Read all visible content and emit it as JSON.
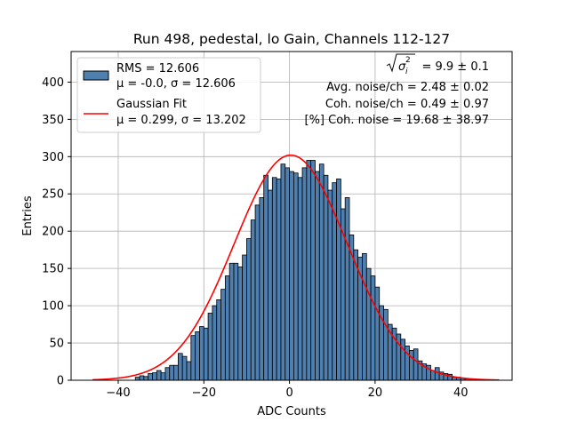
{
  "chart_data": {
    "type": "bar",
    "title": "Run 498, pedestal, lo Gain, Channels 112-127",
    "xlabel": "ADC Counts",
    "ylabel": "Entries",
    "xlim": [
      -51,
      52
    ],
    "ylim": [
      0,
      441
    ],
    "grid": true,
    "xticks": [
      -40,
      -20,
      0,
      20,
      40
    ],
    "xtick_labels": [
      "−40",
      "−20",
      "0",
      "20",
      "40"
    ],
    "yticks": [
      0,
      50,
      100,
      150,
      200,
      250,
      300,
      350,
      400
    ],
    "ytick_labels": [
      "0",
      "50",
      "100",
      "150",
      "200",
      "250",
      "300",
      "350",
      "400"
    ],
    "histogram": {
      "bin_width": 1,
      "bin_start": -46,
      "counts": [
        0,
        0,
        0,
        0,
        0,
        0,
        0,
        0,
        0,
        0,
        4,
        6,
        5,
        9,
        10,
        13,
        10,
        17,
        20,
        20,
        36,
        32,
        25,
        60,
        65,
        72,
        70,
        90,
        100,
        108,
        122,
        140,
        157,
        157,
        152,
        168,
        190,
        215,
        235,
        245,
        275,
        255,
        272,
        270,
        290,
        285,
        280,
        278,
        272,
        285,
        295,
        295,
        280,
        290,
        275,
        255,
        265,
        270,
        230,
        245,
        195,
        175,
        165,
        170,
        150,
        140,
        125,
        100,
        95,
        75,
        70,
        62,
        55,
        46,
        40,
        42,
        26,
        22,
        20,
        13,
        17,
        11,
        9,
        8,
        4,
        4,
        3,
        2,
        1,
        1,
        0,
        0,
        0,
        0,
        0,
        0
      ],
      "fill_color": "#4e7fae",
      "edge_color": "#000000"
    },
    "fit": {
      "name": "Gaussian Fit",
      "mu": 0.299,
      "sigma": 13.202,
      "amplitude": 302,
      "x_range": [
        -46,
        49
      ],
      "color": "#ff0000"
    },
    "legend": {
      "placement": "top-left",
      "entries": [
        {
          "label_line1": "RMS = 12.606",
          "label_line2": "μ = -0.0, σ = 12.606",
          "kind": "patch"
        },
        {
          "label_line1": "Gaussian Fit",
          "label_line2": "μ = 0.299, σ = 13.202",
          "kind": "line"
        }
      ]
    },
    "annotations": {
      "placement": "top-right",
      "sigma_line_value": "= 9.9 ± 0.1",
      "lines": [
        "Avg. noise/ch = 2.48 ± 0.02",
        "Coh. noise/ch = 0.49 ± 0.97",
        "[%] Coh. noise = 19.68 ± 38.97"
      ]
    }
  }
}
